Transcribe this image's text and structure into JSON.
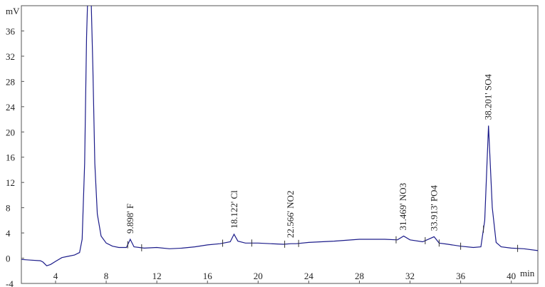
{
  "chart_data": {
    "type": "line",
    "y_label": "mV",
    "x_label": "min",
    "color": "#1c1c8a",
    "xlim": [
      1.3,
      42.1
    ],
    "ylim": [
      -4,
      40
    ],
    "xticks": [
      4,
      8,
      12,
      16,
      20,
      24,
      28,
      32,
      36,
      40
    ],
    "yticks": [
      -4,
      0,
      4,
      8,
      12,
      16,
      20,
      24,
      28,
      32,
      36
    ],
    "x": [
      1.3,
      2,
      2.8,
      3.0,
      3.3,
      3.6,
      4,
      4.5,
      5,
      5.5,
      5.9,
      6.1,
      6.3,
      6.45,
      6.55,
      6.8,
      6.95,
      7.1,
      7.3,
      7.6,
      8,
      8.5,
      9,
      9.6,
      9.9,
      10.2,
      11,
      12,
      13,
      14,
      15,
      16,
      17,
      17.8,
      18.1,
      18.4,
      19,
      20,
      21,
      22,
      22.6,
      23,
      24,
      26,
      28,
      30,
      31,
      31.5,
      32,
      33,
      33.9,
      34.3,
      35,
      36,
      37,
      37.6,
      37.9,
      38.2,
      38.5,
      38.8,
      39.2,
      40,
      41,
      42.1
    ],
    "values": [
      -0.2,
      -0.3,
      -0.4,
      -0.6,
      -1.2,
      -1.0,
      -0.5,
      0.1,
      0.3,
      0.5,
      0.9,
      3,
      15,
      35,
      42,
      42,
      30,
      15,
      7,
      3.5,
      2.4,
      1.9,
      1.7,
      1.7,
      3.0,
      1.8,
      1.6,
      1.7,
      1.5,
      1.6,
      1.8,
      2.1,
      2.3,
      2.6,
      3.8,
      2.7,
      2.4,
      2.4,
      2.3,
      2.2,
      2.3,
      2.3,
      2.5,
      2.7,
      3.0,
      3.0,
      2.9,
      3.5,
      2.9,
      2.6,
      3.4,
      2.4,
      2.2,
      1.9,
      1.7,
      1.8,
      6,
      21,
      8,
      2.5,
      1.8,
      1.6,
      1.5,
      1.2
    ],
    "integration_marks": [
      9.7,
      10.8,
      17.2,
      19.5,
      22.1,
      23.2,
      30.9,
      33.2,
      34.3,
      36.0,
      37.8,
      40.5
    ],
    "annotations": [
      {
        "x": 9.898,
        "y": 3.0,
        "label": "9.898' F"
      },
      {
        "x": 18.122,
        "y": 3.8,
        "label": "18.122' Cl"
      },
      {
        "x": 22.566,
        "y": 2.3,
        "label": "22.566' NO2"
      },
      {
        "x": 31.469,
        "y": 3.5,
        "label": "31.469' NO3"
      },
      {
        "x": 33.913,
        "y": 3.4,
        "label": "33.913' PO4"
      },
      {
        "x": 38.201,
        "y": 21,
        "label": "38.201' SO4"
      }
    ]
  }
}
